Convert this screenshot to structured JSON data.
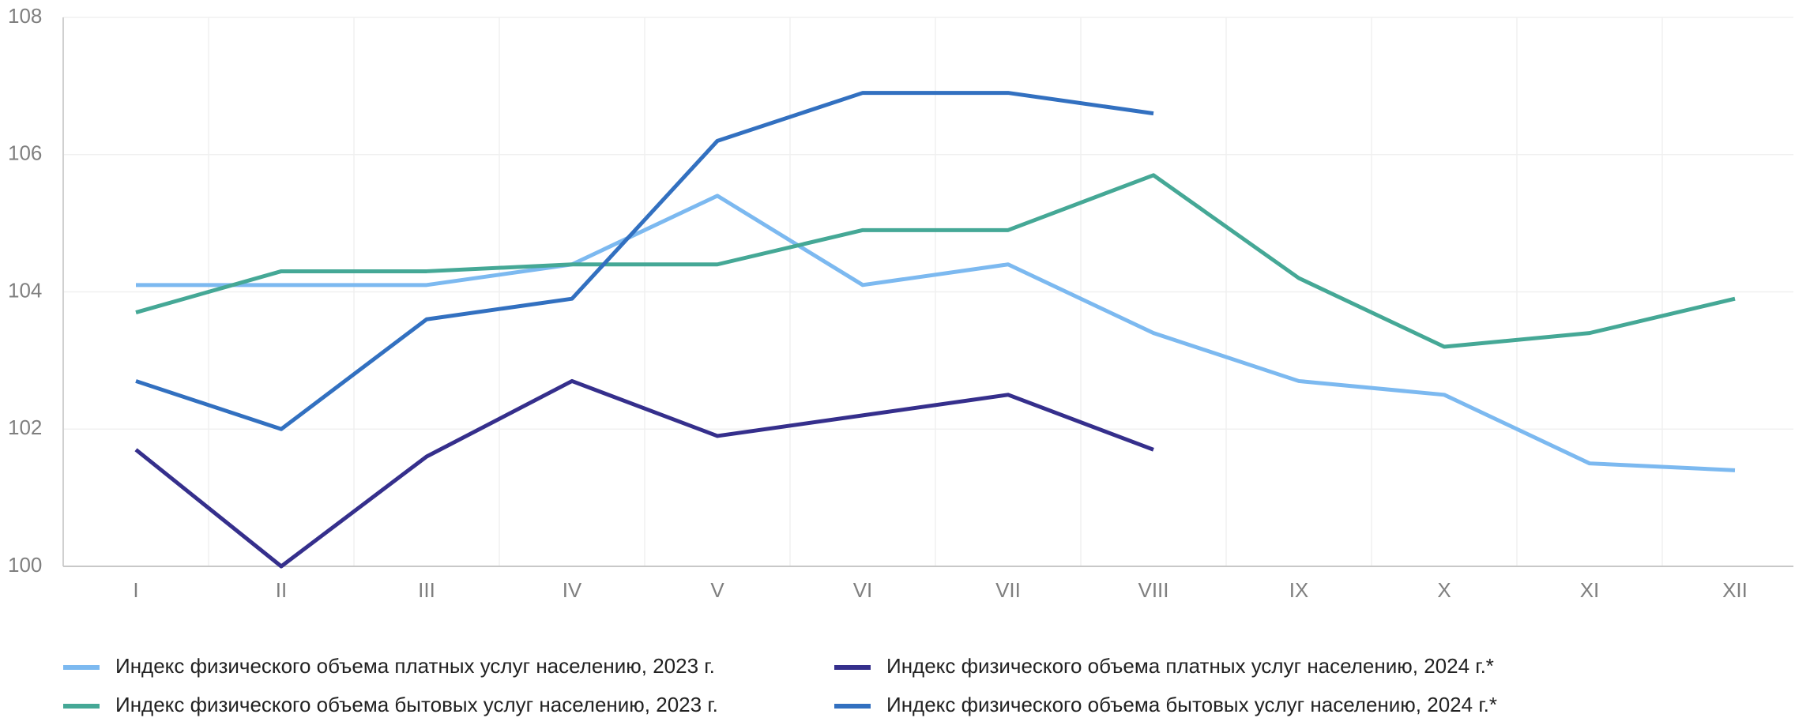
{
  "chart_data": {
    "type": "line",
    "categories": [
      "I",
      "II",
      "III",
      "IV",
      "V",
      "VI",
      "VII",
      "VIII",
      "IX",
      "X",
      "XI",
      "XII"
    ],
    "series": [
      {
        "name": "Индекс физического объема платных услуг населению, 2023 г.",
        "color": "#7cb9f0",
        "values": [
          104.1,
          104.1,
          104.1,
          104.4,
          105.4,
          104.1,
          104.4,
          103.4,
          102.7,
          102.5,
          101.5,
          101.4
        ]
      },
      {
        "name": "Индекс физического объема бытовых услуг населению, 2023 г.",
        "color": "#45a896",
        "values": [
          103.7,
          104.3,
          104.3,
          104.4,
          104.4,
          104.9,
          104.9,
          105.7,
          104.2,
          103.2,
          103.4,
          103.9
        ]
      },
      {
        "name": "Индекс физического объема платных услуг населению, 2024 г.*",
        "color": "#352f8c",
        "values": [
          101.7,
          100.0,
          101.6,
          102.7,
          101.9,
          102.2,
          102.5,
          101.7,
          null,
          null,
          null,
          null
        ]
      },
      {
        "name": "Индекс физического объема бытовых услуг населению, 2024 г.*",
        "color": "#3270c0",
        "values": [
          102.7,
          102.0,
          103.6,
          103.9,
          106.2,
          106.9,
          106.9,
          106.6,
          null,
          null,
          null,
          null
        ]
      }
    ],
    "ylim": [
      100,
      108
    ],
    "yticks": [
      100,
      102,
      104,
      106,
      108
    ],
    "grid": true
  }
}
